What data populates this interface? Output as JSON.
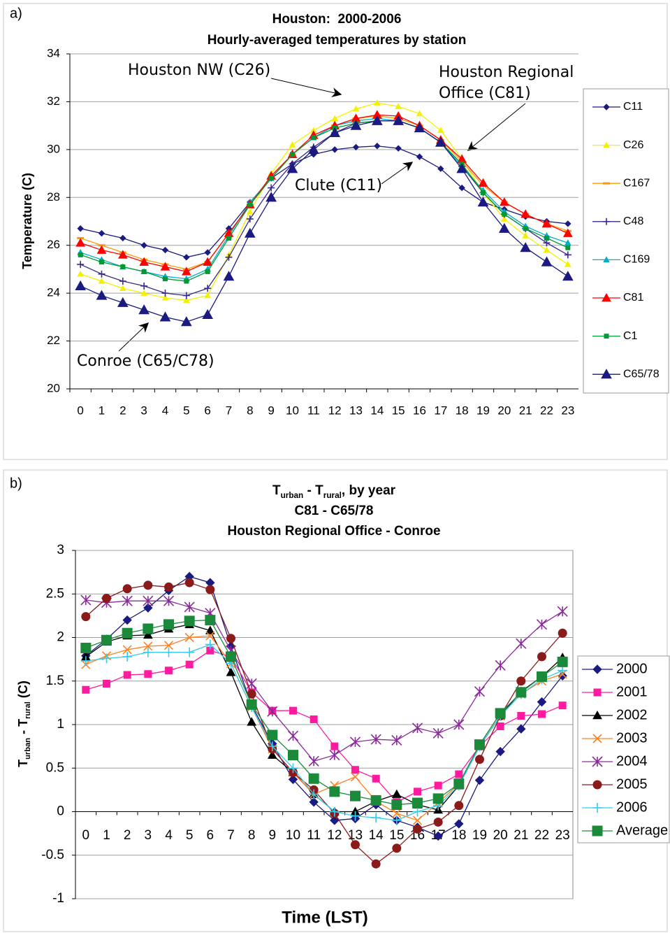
{
  "chart_data": [
    {
      "type": "line",
      "panel_label": "a)",
      "title": "Houston:  2000-2006",
      "subtitle": "Hourly-averaged temperatures by station",
      "ylabel": "Temperature (C)",
      "categories": [
        "0",
        "1",
        "2",
        "3",
        "4",
        "5",
        "6",
        "7",
        "8",
        "9",
        "10",
        "11",
        "12",
        "13",
        "14",
        "15",
        "16",
        "17",
        "18",
        "19",
        "20",
        "21",
        "22",
        "23"
      ],
      "ylim": [
        20,
        34
      ],
      "yticks": [
        20,
        22,
        24,
        26,
        28,
        30,
        32,
        34
      ],
      "grid": true,
      "legend": "right",
      "annotations": [
        "Houston NW (C26)",
        "Houston Regional",
        "Office (C81)",
        "Clute (C11)",
        "Conroe (C65/C78)"
      ],
      "series": [
        {
          "name": "C11",
          "color": "#1a1a80",
          "marker": "diamond",
          "marker_size": 4,
          "values": [
            26.7,
            26.5,
            26.3,
            26.0,
            25.8,
            25.5,
            25.7,
            26.7,
            27.8,
            28.8,
            29.4,
            29.8,
            30.0,
            30.1,
            30.15,
            30.05,
            29.7,
            29.2,
            28.4,
            27.8,
            27.5,
            27.2,
            27.0,
            26.9
          ]
        },
        {
          "name": "C26",
          "color": "#f2f200",
          "marker": "triangle",
          "marker_size": 4,
          "values": [
            24.8,
            24.5,
            24.2,
            24.0,
            23.8,
            23.7,
            23.9,
            25.6,
            27.4,
            29.0,
            30.2,
            30.8,
            31.3,
            31.7,
            31.95,
            31.8,
            31.5,
            30.8,
            29.6,
            28.2,
            27.1,
            26.4,
            25.8,
            25.2
          ]
        },
        {
          "name": "C167",
          "color": "#ff9900",
          "marker": "dash",
          "marker_size": 5,
          "values": [
            26.3,
            26.0,
            25.7,
            25.4,
            25.2,
            25.0,
            25.3,
            26.5,
            27.7,
            28.8,
            29.8,
            30.5,
            31.0,
            31.3,
            31.4,
            31.3,
            31.0,
            30.4,
            29.5,
            28.5,
            27.8,
            27.3,
            26.9,
            26.6
          ]
        },
        {
          "name": "C48",
          "color": "#3a2a8a",
          "marker": "plus",
          "marker_size": 5,
          "values": [
            25.2,
            24.8,
            24.5,
            24.3,
            24.0,
            23.9,
            24.2,
            25.5,
            27.1,
            28.4,
            29.4,
            30.1,
            30.7,
            31.1,
            31.2,
            31.2,
            30.9,
            30.3,
            29.3,
            28.2,
            27.3,
            26.7,
            26.1,
            25.6
          ]
        },
        {
          "name": "C169",
          "color": "#00b0c8",
          "marker": "triangle",
          "marker_size": 4,
          "values": [
            25.7,
            25.4,
            25.1,
            24.9,
            24.7,
            24.6,
            25.0,
            26.4,
            27.8,
            28.8,
            29.8,
            30.5,
            31.0,
            31.2,
            31.3,
            31.2,
            30.9,
            30.3,
            29.3,
            28.3,
            27.4,
            26.8,
            26.4,
            26.1
          ]
        },
        {
          "name": "C81",
          "color": "#ff0000",
          "marker": "triangle",
          "marker_size": 6,
          "values": [
            26.1,
            25.8,
            25.6,
            25.3,
            25.1,
            24.9,
            25.3,
            26.5,
            27.7,
            28.9,
            29.8,
            30.6,
            31.0,
            31.3,
            31.45,
            31.4,
            31.0,
            30.4,
            29.6,
            28.6,
            27.8,
            27.3,
            26.9,
            26.5
          ]
        },
        {
          "name": "C1",
          "color": "#009933",
          "marker": "square",
          "marker_size": 3,
          "values": [
            25.6,
            25.3,
            25.1,
            24.9,
            24.6,
            24.5,
            24.9,
            26.3,
            27.7,
            28.8,
            29.8,
            30.5,
            30.9,
            31.1,
            31.2,
            31.2,
            30.9,
            30.3,
            29.4,
            28.2,
            27.3,
            26.7,
            26.3,
            25.9
          ]
        },
        {
          "name": "C65/78",
          "color": "#1a1a80",
          "marker": "triangle",
          "marker_size": 7,
          "values": [
            24.3,
            23.9,
            23.6,
            23.3,
            23.0,
            22.8,
            23.1,
            24.7,
            26.5,
            28.0,
            29.2,
            30.0,
            30.7,
            31.0,
            31.2,
            31.2,
            30.9,
            30.3,
            29.2,
            27.8,
            26.7,
            25.9,
            25.3,
            24.7
          ]
        }
      ]
    },
    {
      "type": "line",
      "panel_label": "b)",
      "title": [
        {
          "text": "T"
        },
        {
          "text": "urban",
          "sub": true
        },
        {
          "text": " - T"
        },
        {
          "text": "rural",
          "sub": true
        },
        {
          "text": ", by year"
        }
      ],
      "subtitle": [
        "C81 - C65/78",
        "Houston Regional Office - Conroe"
      ],
      "ylabel": [
        {
          "text": "T"
        },
        {
          "text": "urban",
          "sub": true
        },
        {
          "text": " - T"
        },
        {
          "text": "rural",
          "sub": true
        },
        {
          "text": " (C)"
        }
      ],
      "xlabel": "Time (LST)",
      "categories": [
        "0",
        "1",
        "2",
        "3",
        "4",
        "5",
        "6",
        "7",
        "8",
        "9",
        "10",
        "11",
        "12",
        "13",
        "14",
        "15",
        "16",
        "17",
        "18",
        "19",
        "20",
        "21",
        "22",
        "23"
      ],
      "ylim": [
        -1,
        3
      ],
      "yticks": [
        -1,
        -0.5,
        0,
        0.5,
        1,
        1.5,
        2,
        2.5,
        3
      ],
      "grid": true,
      "legend": "right",
      "series": [
        {
          "name": "2000",
          "color": "#1a1a80",
          "marker": "diamond",
          "marker_size": 6,
          "values": [
            1.79,
            1.98,
            2.2,
            2.34,
            2.54,
            2.7,
            2.63,
            1.9,
            1.22,
            0.78,
            0.37,
            0.11,
            -0.1,
            -0.08,
            0.08,
            -0.1,
            -0.18,
            -0.28,
            -0.14,
            0.36,
            0.69,
            0.95,
            1.26,
            1.56
          ]
        },
        {
          "name": "2001",
          "color": "#ff1aa0",
          "marker": "square",
          "marker_size": 5,
          "values": [
            1.4,
            1.47,
            1.57,
            1.58,
            1.62,
            1.69,
            1.85,
            1.78,
            1.37,
            1.16,
            1.16,
            1.06,
            0.75,
            0.48,
            0.38,
            0.11,
            0.23,
            0.3,
            0.43,
            0.75,
            0.98,
            1.1,
            1.12,
            1.22
          ]
        },
        {
          "name": "2002",
          "color": "#000000",
          "marker": "triangle",
          "marker_size": 6,
          "values": [
            1.78,
            1.95,
            2.02,
            2.03,
            2.1,
            2.15,
            2.08,
            1.6,
            1.03,
            0.65,
            0.45,
            0.2,
            0.0,
            0.0,
            0.12,
            0.2,
            0.08,
            0.02,
            0.3,
            0.75,
            1.1,
            1.38,
            1.55,
            1.77
          ]
        },
        {
          "name": "2003",
          "color": "#ff8020",
          "marker": "x",
          "marker_size": 6,
          "values": [
            1.69,
            1.79,
            1.86,
            1.9,
            1.91,
            2.0,
            2.02,
            1.7,
            1.2,
            0.72,
            0.45,
            0.2,
            0.3,
            0.4,
            0.12,
            -0.02,
            -0.1,
            0.1,
            0.32,
            0.75,
            1.1,
            1.35,
            1.5,
            1.58
          ]
        },
        {
          "name": "2004",
          "color": "#8a2a9a",
          "marker": "star",
          "marker_size": 7,
          "values": [
            2.43,
            2.4,
            2.42,
            2.42,
            2.42,
            2.35,
            2.28,
            1.85,
            1.47,
            1.15,
            0.87,
            0.58,
            0.65,
            0.8,
            0.83,
            0.82,
            0.96,
            0.9,
            1.0,
            1.38,
            1.68,
            1.93,
            2.15,
            2.3
          ]
        },
        {
          "name": "2005",
          "color": "#8b1a1a",
          "marker": "circle",
          "marker_size": 6,
          "values": [
            2.24,
            2.45,
            2.56,
            2.6,
            2.58,
            2.63,
            2.55,
            1.99,
            1.35,
            0.72,
            0.45,
            0.25,
            -0.02,
            -0.38,
            -0.6,
            -0.42,
            -0.2,
            -0.12,
            0.07,
            0.6,
            1.1,
            1.5,
            1.78,
            2.05
          ]
        },
        {
          "name": "2006",
          "color": "#33ccee",
          "marker": "plus",
          "marker_size": 7,
          "values": [
            1.73,
            1.76,
            1.78,
            1.83,
            1.83,
            1.83,
            1.92,
            1.7,
            1.2,
            0.75,
            0.5,
            0.2,
            0.0,
            -0.05,
            -0.07,
            -0.1,
            0.0,
            0.07,
            0.3,
            0.75,
            1.1,
            1.35,
            1.52,
            1.62
          ]
        },
        {
          "name": "Average",
          "color": "#1a8a3a",
          "marker": "square",
          "marker_size": 7,
          "values": [
            1.88,
            1.97,
            2.05,
            2.1,
            2.15,
            2.19,
            2.2,
            1.78,
            1.23,
            0.88,
            0.65,
            0.38,
            0.23,
            0.18,
            0.13,
            0.08,
            0.1,
            0.15,
            0.32,
            0.77,
            1.13,
            1.37,
            1.55,
            1.72
          ]
        }
      ]
    }
  ]
}
